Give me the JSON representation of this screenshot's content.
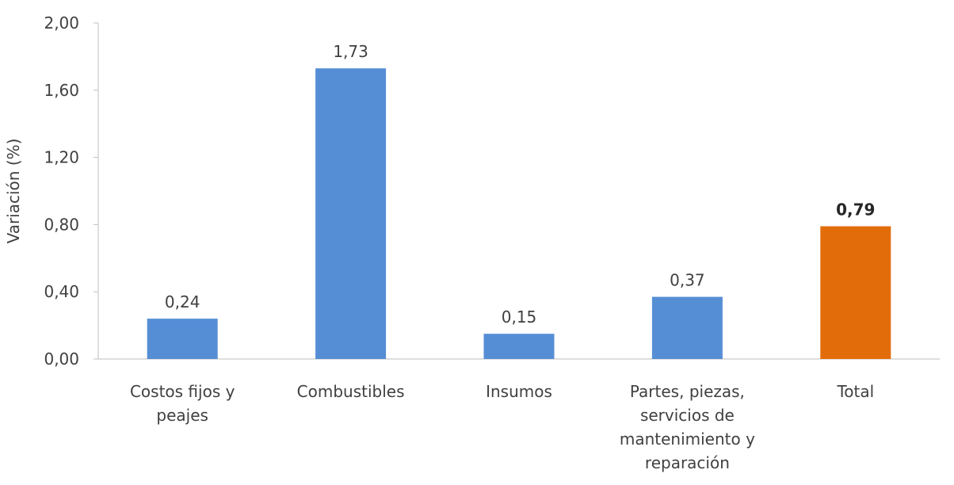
{
  "chart_data": {
    "type": "bar",
    "title": "",
    "xlabel": "",
    "ylabel": "Variación (%)",
    "ylim": [
      0,
      2
    ],
    "yticks": [
      "0,00",
      "0,40",
      "0,80",
      "1,20",
      "1,60",
      "2,00"
    ],
    "ytick_values": [
      0,
      0.4,
      0.8,
      1.2,
      1.6,
      2.0
    ],
    "grid": false,
    "legend": "none",
    "categories": [
      [
        "Costos fijos y",
        "peajes"
      ],
      [
        "Combustibles"
      ],
      [
        "Insumos"
      ],
      [
        "Partes, piezas,",
        "servicios de",
        "mantenimiento y",
        "reparación"
      ],
      [
        "Total"
      ]
    ],
    "values": [
      0.24,
      1.73,
      0.15,
      0.37,
      0.79
    ],
    "labels": [
      "0,24",
      "1,73",
      "0,15",
      "0,37",
      "0,79"
    ],
    "bold_labels": [
      false,
      false,
      false,
      false,
      true
    ],
    "colors": [
      "#558ED5",
      "#558ED5",
      "#558ED5",
      "#558ED5",
      "#E36C0A"
    ],
    "axis_color": "#BFBFBF"
  }
}
